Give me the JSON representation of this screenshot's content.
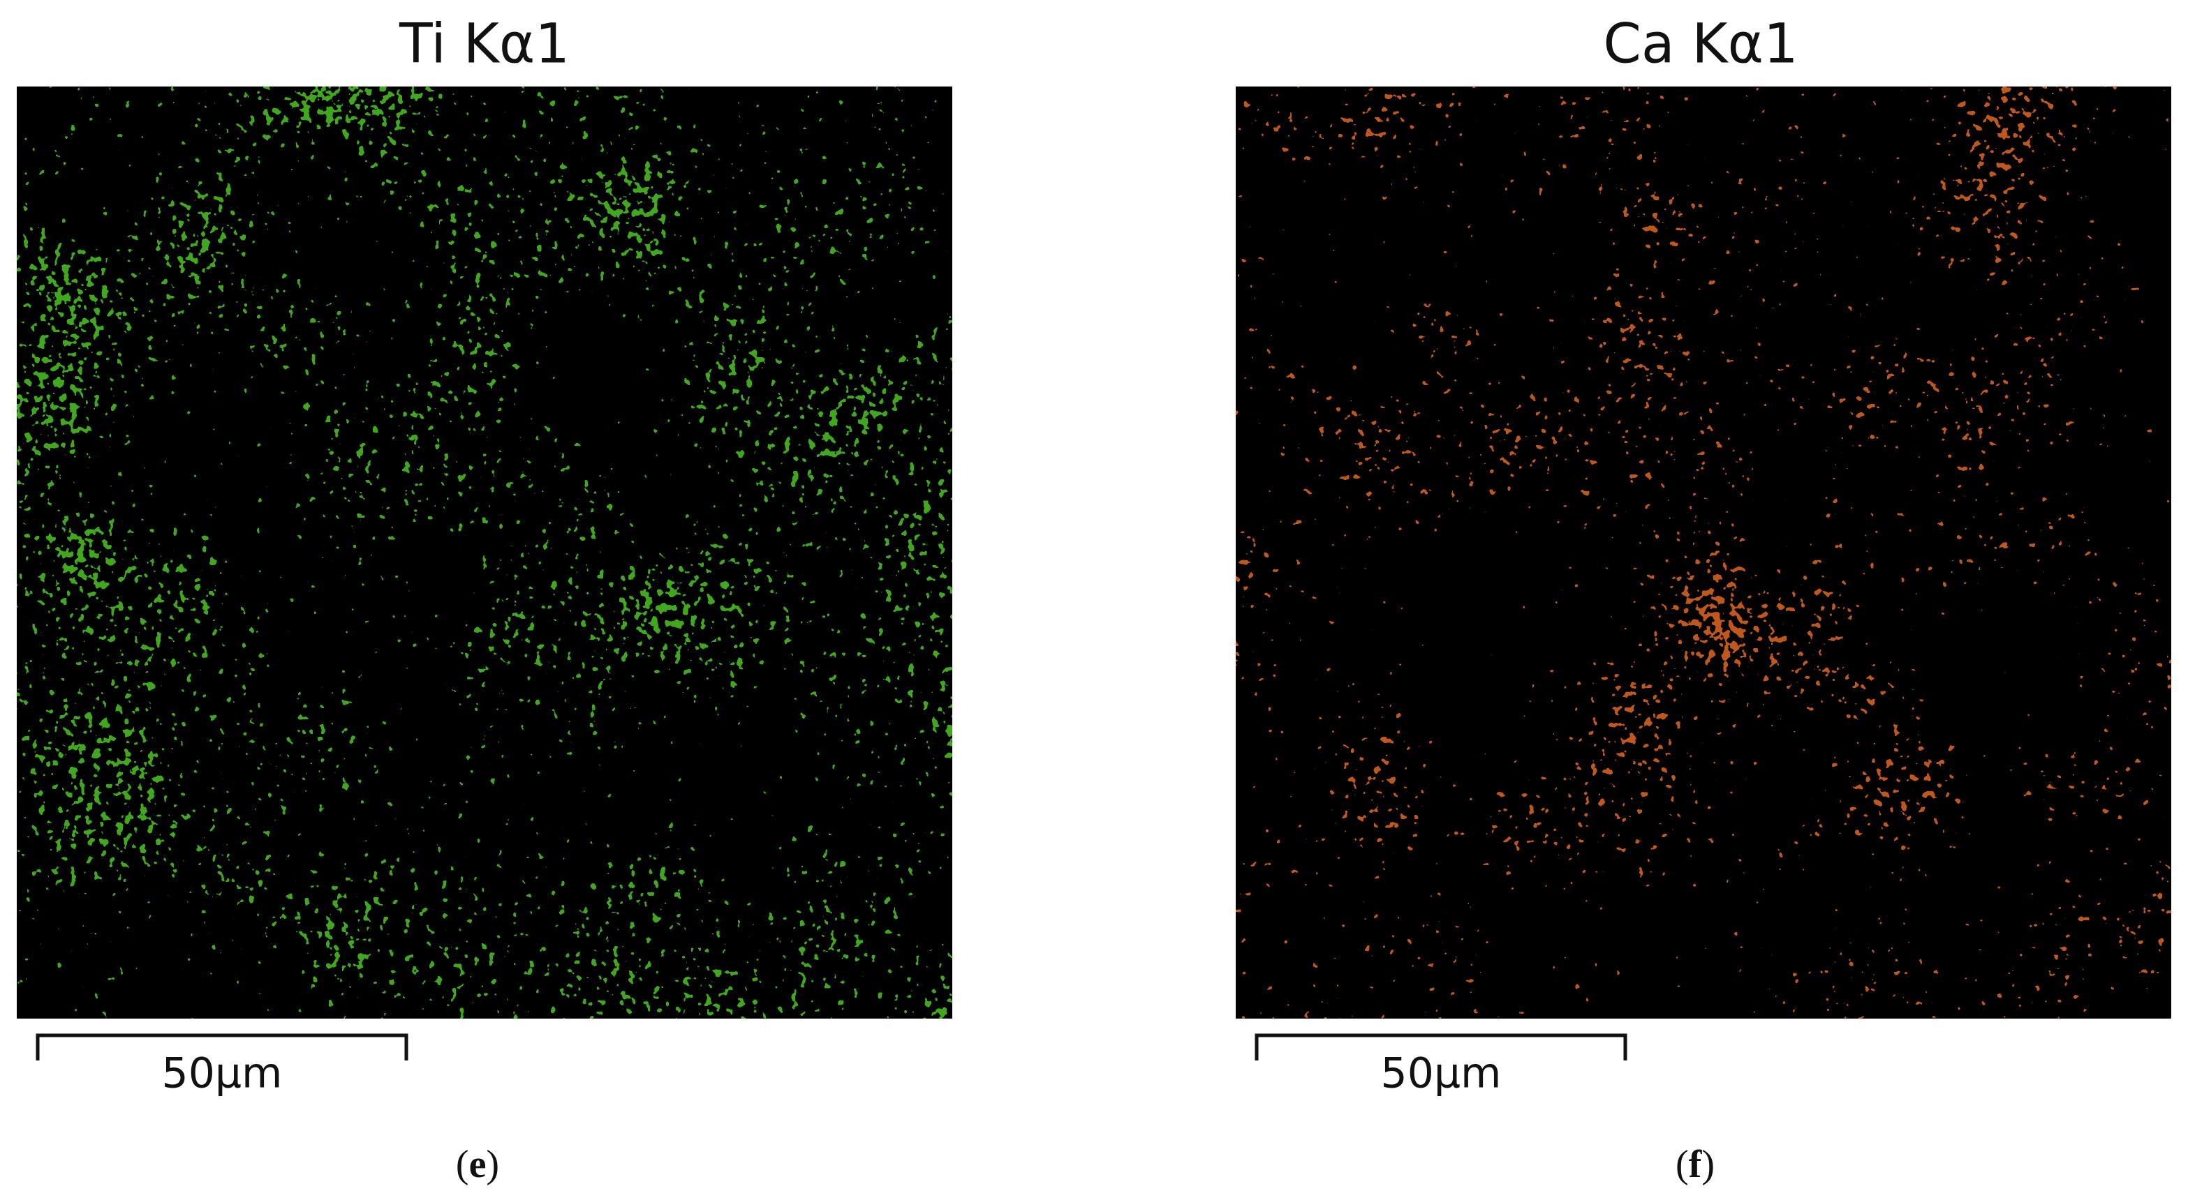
{
  "panels": [
    {
      "title": "Ti Kα1",
      "scale_label": "50µm",
      "caption": [
        "(",
        "e",
        ")"
      ]
    },
    {
      "title": "Ca Kα1",
      "scale_label": "50µm",
      "caption": [
        "(",
        "f",
        ")"
      ]
    }
  ]
}
